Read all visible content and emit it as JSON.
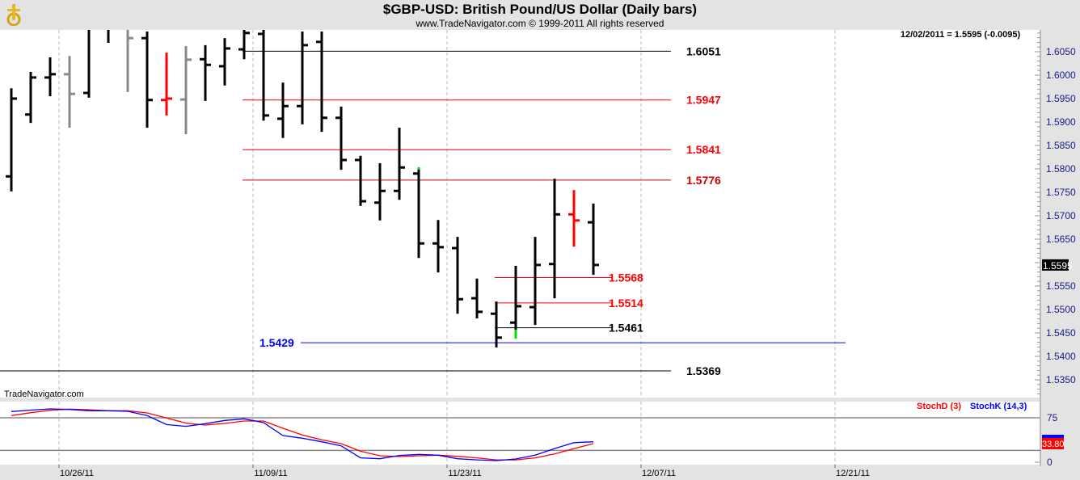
{
  "header": {
    "title": "$GBP-USD:  British Pound/US Dollar  (Daily bars)",
    "subtitle": "www.TradeNavigator.com © 1999-2011 All rights reserved"
  },
  "readout": "12/02/2011 = 1.5595 (-0.0095)",
  "watermark": "TradeNavigator.com",
  "chart_data": [
    {
      "type": "ohlc",
      "title": "$GBP-USD:  British Pound/US Dollar  (Daily bars)",
      "ylim": [
        1.53,
        1.61
      ],
      "yticks": [
        "1.6050",
        "1.6000",
        "1.5950",
        "1.5900",
        "1.5850",
        "1.5800",
        "1.5750",
        "1.5700",
        "1.5650",
        "1.5550",
        "1.5500",
        "1.5450",
        "1.5400",
        "1.5350"
      ],
      "xticks": [
        "10/26/11",
        "11/09/11",
        "11/23/11",
        "12/07/11",
        "12/21/11"
      ],
      "last_price_label": "1.5595",
      "colors": {
        "up": "#000000",
        "gray": "#888888",
        "red": "#ff0000",
        "green": "#00e000"
      },
      "bars": [
        {
          "o": 1.5784,
          "h": 1.5972,
          "l": 1.5752,
          "c": 1.595,
          "color": "black"
        },
        {
          "o": 1.5916,
          "h": 1.6007,
          "l": 1.5898,
          "c": 1.5995,
          "color": "black"
        },
        {
          "o": 1.5995,
          "h": 1.6038,
          "l": 1.5955,
          "c": 1.6002,
          "color": "black"
        },
        {
          "o": 1.6002,
          "h": 1.6041,
          "l": 1.5888,
          "c": 1.596,
          "color": "gray"
        },
        {
          "o": 1.5962,
          "h": 1.6126,
          "l": 1.5952,
          "c": 1.6109,
          "color": "black"
        },
        {
          "o": 1.6117,
          "h": 1.6143,
          "l": 1.6069,
          "c": 1.6109,
          "color": "black"
        },
        {
          "o": 1.6117,
          "h": 1.6134,
          "l": 1.5964,
          "c": 1.6079,
          "color": "gray"
        },
        {
          "o": 1.6079,
          "h": 1.6093,
          "l": 1.5888,
          "c": 1.5947,
          "color": "black"
        },
        {
          "o": 1.5947,
          "h": 1.6048,
          "l": 1.5914,
          "c": 1.595,
          "color": "red"
        },
        {
          "o": 1.5948,
          "h": 1.6062,
          "l": 1.5874,
          "c": 1.6033,
          "color": "gray"
        },
        {
          "o": 1.6034,
          "h": 1.6064,
          "l": 1.5945,
          "c": 1.6022,
          "color": "black"
        },
        {
          "o": 1.6019,
          "h": 1.6079,
          "l": 1.5978,
          "c": 1.6057,
          "color": "black"
        },
        {
          "o": 1.6055,
          "h": 1.6109,
          "l": 1.6034,
          "c": 1.609,
          "color": "black"
        },
        {
          "o": 1.6088,
          "h": 1.6109,
          "l": 1.5903,
          "c": 1.5914,
          "color": "black"
        },
        {
          "o": 1.5907,
          "h": 1.5984,
          "l": 1.5866,
          "c": 1.5934,
          "color": "black"
        },
        {
          "o": 1.5934,
          "h": 1.6093,
          "l": 1.5895,
          "c": 1.6064,
          "color": "black"
        },
        {
          "o": 1.6071,
          "h": 1.6093,
          "l": 1.5879,
          "c": 1.5909,
          "color": "black"
        },
        {
          "o": 1.5909,
          "h": 1.5933,
          "l": 1.5798,
          "c": 1.5819,
          "color": "black"
        },
        {
          "o": 1.5819,
          "h": 1.5828,
          "l": 1.5721,
          "c": 1.5731,
          "color": "black"
        },
        {
          "o": 1.5728,
          "h": 1.5812,
          "l": 1.569,
          "c": 1.5753,
          "color": "black"
        },
        {
          "o": 1.5753,
          "h": 1.5888,
          "l": 1.5734,
          "c": 1.5803,
          "color": "black"
        },
        {
          "o": 1.579,
          "h": 1.5802,
          "l": 1.561,
          "c": 1.5641,
          "color": "black",
          "green_mark": "high"
        },
        {
          "o": 1.5641,
          "h": 1.5691,
          "l": 1.5579,
          "c": 1.5633,
          "color": "black"
        },
        {
          "o": 1.5631,
          "h": 1.5655,
          "l": 1.5491,
          "c": 1.5522,
          "color": "black"
        },
        {
          "o": 1.5524,
          "h": 1.5566,
          "l": 1.5481,
          "c": 1.5495,
          "color": "black"
        },
        {
          "o": 1.5491,
          "h": 1.5517,
          "l": 1.5419,
          "c": 1.544,
          "color": "black"
        },
        {
          "o": 1.5472,
          "h": 1.5593,
          "l": 1.5438,
          "c": 1.5507,
          "color": "black",
          "green_mark": "low"
        },
        {
          "o": 1.5505,
          "h": 1.5655,
          "l": 1.5467,
          "c": 1.5595,
          "color": "black"
        },
        {
          "o": 1.5597,
          "h": 1.5779,
          "l": 1.5524,
          "c": 1.5703,
          "color": "black"
        },
        {
          "o": 1.5703,
          "h": 1.5755,
          "l": 1.5634,
          "c": 1.569,
          "color": "red"
        },
        {
          "o": 1.5686,
          "h": 1.5726,
          "l": 1.5574,
          "c": 1.5595,
          "color": "black"
        }
      ],
      "levels": [
        {
          "label": "1.6051",
          "value": 1.6051,
          "color": "#000000",
          "from_bar": 12,
          "to_bar": 34,
          "label_bar": 35
        },
        {
          "label": "1.5947",
          "value": 1.5947,
          "color": "#ff0000",
          "from_bar": 12,
          "to_bar": 34,
          "label_bar": 35
        },
        {
          "label": "1.5841",
          "value": 1.5841,
          "color": "#ff0000",
          "from_bar": 12,
          "to_bar": 34,
          "label_bar": 35
        },
        {
          "label": "1.5776",
          "value": 1.5776,
          "color": "#cc0000",
          "from_bar": 12,
          "to_bar": 34,
          "label_bar": 35
        },
        {
          "label": "1.5568",
          "value": 1.5568,
          "color": "#ff0000",
          "from_bar": 25,
          "to_bar": 31,
          "label_bar": 31
        },
        {
          "label": "1.5514",
          "value": 1.5514,
          "color": "#ff0000",
          "from_bar": 25,
          "to_bar": 31,
          "label_bar": 31
        },
        {
          "label": "1.5461",
          "value": 1.5461,
          "color": "#000000",
          "from_bar": 25,
          "to_bar": 31,
          "label_bar": 31
        },
        {
          "label": "1.5429",
          "value": 1.5429,
          "color": "#0000ff",
          "from_bar": 15,
          "to_bar": 43,
          "label_bar": 13
        },
        {
          "label": "1.5369",
          "value": 1.5369,
          "color": "#000000",
          "from_bar": -1,
          "to_bar": 34,
          "label_bar": 35
        }
      ]
    },
    {
      "type": "line",
      "ylim": [
        0,
        100
      ],
      "yticks": [
        "75",
        "0"
      ],
      "guides": [
        75,
        20
      ],
      "last_value_label": "33.80",
      "series": [
        {
          "name": "StochD (3)",
          "color": "#ff0000",
          "values": [
            78.7,
            83.6,
            87.7,
            89.6,
            88.6,
            86.8,
            86.8,
            83.2,
            74.6,
            66,
            62.7,
            65.5,
            69.5,
            69.5,
            57.3,
            46,
            37.8,
            31.4,
            18.6,
            10.9,
            9.5,
            10.9,
            11.8,
            10,
            7.3,
            4,
            4,
            7.3,
            14,
            23,
            31.4
          ]
        },
        {
          "name": "StochK (14,3)",
          "color": "#0000ff",
          "values": [
            85.5,
            88,
            90,
            89,
            86.8,
            86.8,
            85.9,
            78.7,
            63.6,
            60.5,
            65,
            70.5,
            73.2,
            66.8,
            45,
            40.5,
            34.5,
            27.7,
            7.3,
            5.9,
            11.4,
            13.2,
            11.8,
            5.9,
            4,
            2.7,
            5.5,
            11.8,
            23,
            33,
            34.5
          ]
        }
      ]
    }
  ]
}
